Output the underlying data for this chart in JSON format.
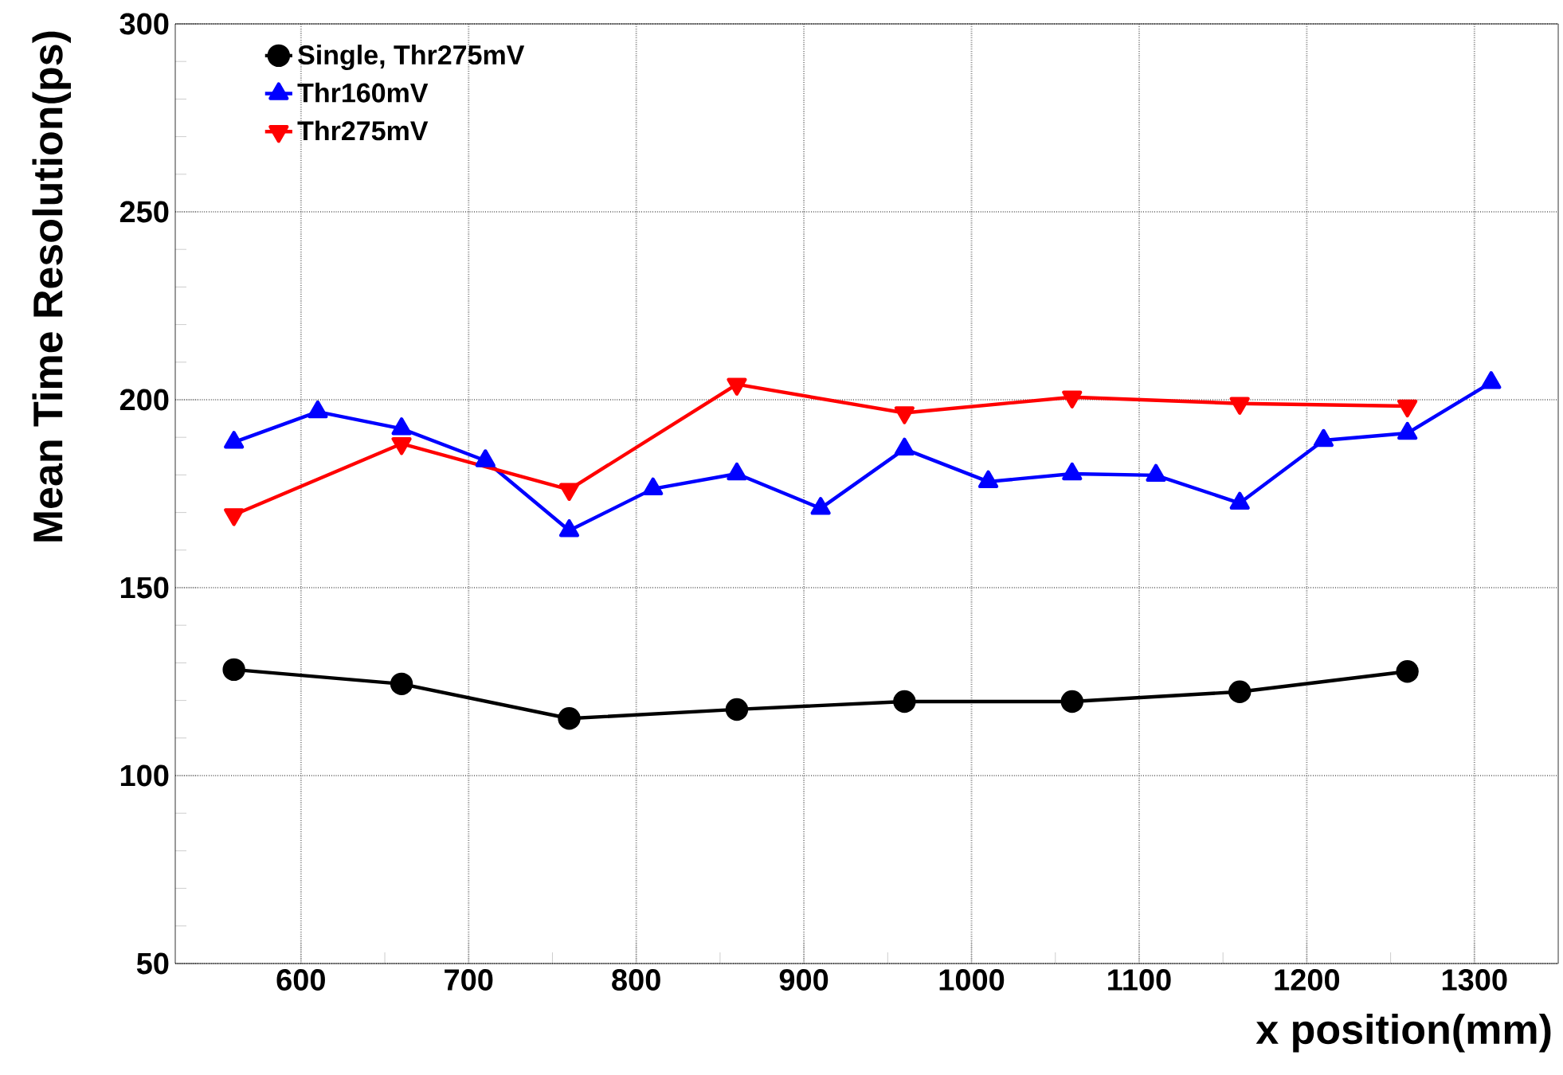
{
  "chart_data": {
    "type": "line",
    "xlabel": "x position(mm)",
    "ylabel": "Mean Time Resolution(ps)",
    "xlim": [
      525,
      1350
    ],
    "ylim": [
      50,
      300
    ],
    "xticks": [
      600,
      700,
      800,
      900,
      1000,
      1100,
      1200,
      1300
    ],
    "yticks": [
      50,
      100,
      150,
      200,
      250,
      300
    ],
    "grid": true,
    "legend": "top left",
    "line_style": "solid",
    "series": [
      {
        "name": "Single, Thr275mV",
        "color": "#000000",
        "marker": "circle",
        "x": [
          560,
          660,
          760,
          860,
          960,
          1060,
          1160,
          1260
        ],
        "values": [
          128.2,
          124.4,
          115.2,
          117.6,
          119.7,
          119.7,
          122.3,
          127.7
        ]
      },
      {
        "name": "Thr160mV",
        "color": "#0000ff",
        "marker": "triangle",
        "x": [
          560,
          610,
          660,
          710,
          760,
          810,
          860,
          910,
          960,
          1010,
          1060,
          1110,
          1160,
          1210,
          1260,
          1310
        ],
        "values": [
          188.7,
          196.8,
          192.3,
          183.8,
          165.2,
          176.3,
          180.3,
          171.1,
          186.9,
          178.2,
          180.3,
          179.9,
          172.5,
          189.2,
          191.1,
          204.6
        ]
      },
      {
        "name": "Thr275mV",
        "color": "#ff0000",
        "marker": "triangle-down",
        "x": [
          560,
          660,
          760,
          860,
          960,
          1060,
          1160,
          1260
        ],
        "values": [
          169.4,
          188.3,
          176.1,
          204.1,
          196.5,
          200.7,
          199.0,
          198.3
        ]
      }
    ]
  }
}
